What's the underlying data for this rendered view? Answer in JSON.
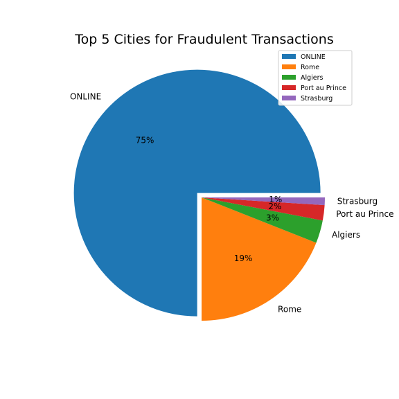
{
  "chart_data": {
    "type": "pie",
    "title": "Top 5 Cities for Fraudulent Transactions",
    "slices": [
      {
        "label": "ONLINE",
        "value": 75,
        "pct_label": "75%",
        "color": "#1f77b4",
        "exploded": true
      },
      {
        "label": "Rome",
        "value": 19,
        "pct_label": "19%",
        "color": "#ff7f0e",
        "exploded": false
      },
      {
        "label": "Algiers",
        "value": 3,
        "pct_label": "3%",
        "color": "#2ca02c",
        "exploded": false
      },
      {
        "label": "Port au Prince",
        "value": 2,
        "pct_label": "2%",
        "color": "#d62728",
        "exploded": false
      },
      {
        "label": "Strasburg",
        "value": 1,
        "pct_label": "1%",
        "color": "#9467bd",
        "exploded": false
      }
    ],
    "legend": {
      "placement": "top-right",
      "entries": [
        "ONLINE",
        "Rome",
        "Algiers",
        "Port au Prince",
        "Strasburg"
      ]
    }
  }
}
